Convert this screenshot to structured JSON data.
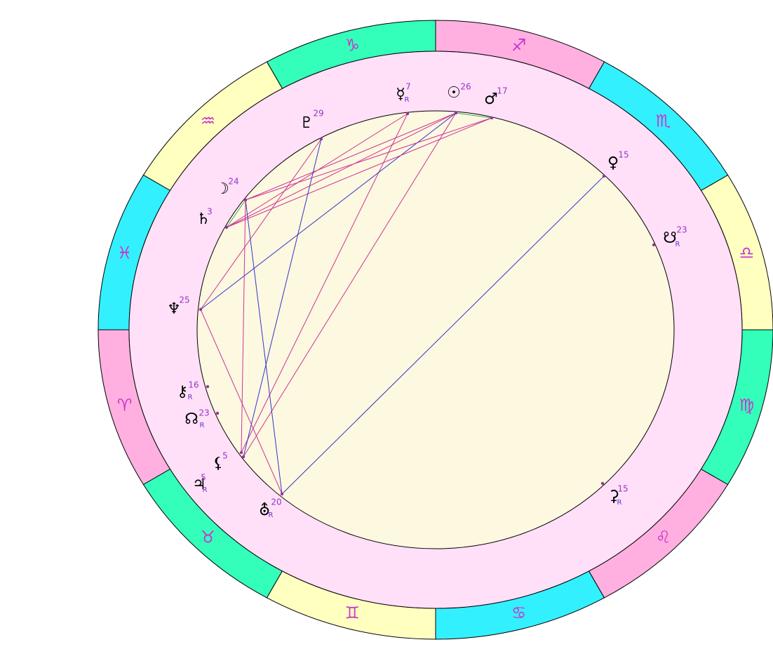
{
  "zodiac": [
    {
      "glyph": "♎",
      "color": "#ffffc0"
    },
    {
      "glyph": "♏",
      "color": "#33f0ff"
    },
    {
      "glyph": "♐",
      "color": "#ffb0e0"
    },
    {
      "glyph": "♑",
      "color": "#33ffbb"
    },
    {
      "glyph": "♒",
      "color": "#ffffc0"
    },
    {
      "glyph": "♓",
      "color": "#33f0ff"
    },
    {
      "glyph": "♈",
      "color": "#ffb0e0"
    },
    {
      "glyph": "♉",
      "color": "#33ffbb"
    },
    {
      "glyph": "♊",
      "color": "#ffffc0"
    },
    {
      "glyph": "♋",
      "color": "#33f0ff"
    },
    {
      "glyph": "♌",
      "color": "#ffb0e0"
    },
    {
      "glyph": "♍",
      "color": "#33ffbb"
    }
  ],
  "planets": [
    {
      "glyph": "☿",
      "degree": 7,
      "retrograde": "R"
    },
    {
      "glyph": "☉",
      "degree": 26
    },
    {
      "glyph": "♂",
      "degree": 17
    },
    {
      "glyph": "♀",
      "degree": 15
    },
    {
      "glyph": "☋",
      "degree": 23,
      "retrograde": "R"
    },
    {
      "glyph": "⚳",
      "degree": 15,
      "retrograde": "R"
    },
    {
      "glyph": "⛢",
      "degree": 20,
      "retrograde": "R"
    },
    {
      "glyph": "♃",
      "degree": 5,
      "retrograde": "R"
    },
    {
      "glyph": "⚸",
      "degree": 5
    },
    {
      "glyph": "☊",
      "degree": 23,
      "retrograde": "R"
    },
    {
      "glyph": "⚷",
      "degree": 16,
      "retrograde": "R"
    },
    {
      "glyph": "♆",
      "degree": 25
    },
    {
      "glyph": "♄",
      "degree": 3
    },
    {
      "glyph": "☽",
      "degree": 24
    },
    {
      "glyph": "♇",
      "degree": 29
    }
  ]
}
